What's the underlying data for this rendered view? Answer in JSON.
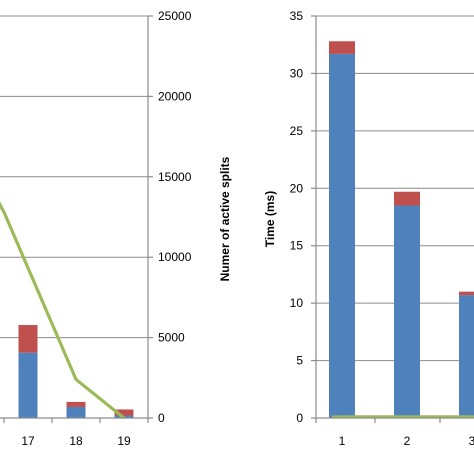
{
  "chart_data": [
    {
      "type": "bar",
      "note_series": "left panel (cropped): stacked bars on left axis (cropped, no tick labels visible) and a green line on the right axis",
      "categories": [
        "17",
        "18",
        "19"
      ],
      "bar_series": [
        {
          "color": "#4f81bd",
          "values": [
            1.3,
            0.22,
            0.05
          ]
        },
        {
          "color": "#c0504d",
          "values": [
            0.55,
            0.1,
            0.12
          ]
        }
      ],
      "line_series": {
        "color": "#9bbb59",
        "axis": "right",
        "points": [
          {
            "x": "15.5",
            "y": 18400
          },
          {
            "x": "16.5",
            "y": 12800
          },
          {
            "x": "18",
            "y": 2400
          },
          {
            "x": "19",
            "y": 0
          }
        ]
      },
      "left_axis": {
        "ylim": [
          0,
          8
        ]
      },
      "right_axis": {
        "label": "Numer of active splits",
        "ylim": [
          0,
          25000
        ],
        "ticks": [
          "0",
          "5000",
          "10000",
          "15000",
          "20000",
          "25000"
        ]
      },
      "grid": true
    },
    {
      "type": "bar",
      "categories": [
        "1",
        "2",
        "3"
      ],
      "bar_series": [
        {
          "color": "#4f81bd",
          "values": [
            31.7,
            18.5,
            10.7
          ]
        },
        {
          "color": "#c0504d",
          "values": [
            1.1,
            1.2,
            0.3
          ]
        }
      ],
      "line_series": {
        "color": "#9bbb59",
        "values": [
          0.02,
          0.02,
          0.02
        ]
      },
      "ylabel": "Time (ms)",
      "ylim": [
        0,
        35
      ],
      "yticks": [
        "0",
        "5",
        "10",
        "15",
        "20",
        "25",
        "30",
        "35"
      ],
      "grid": true
    }
  ]
}
